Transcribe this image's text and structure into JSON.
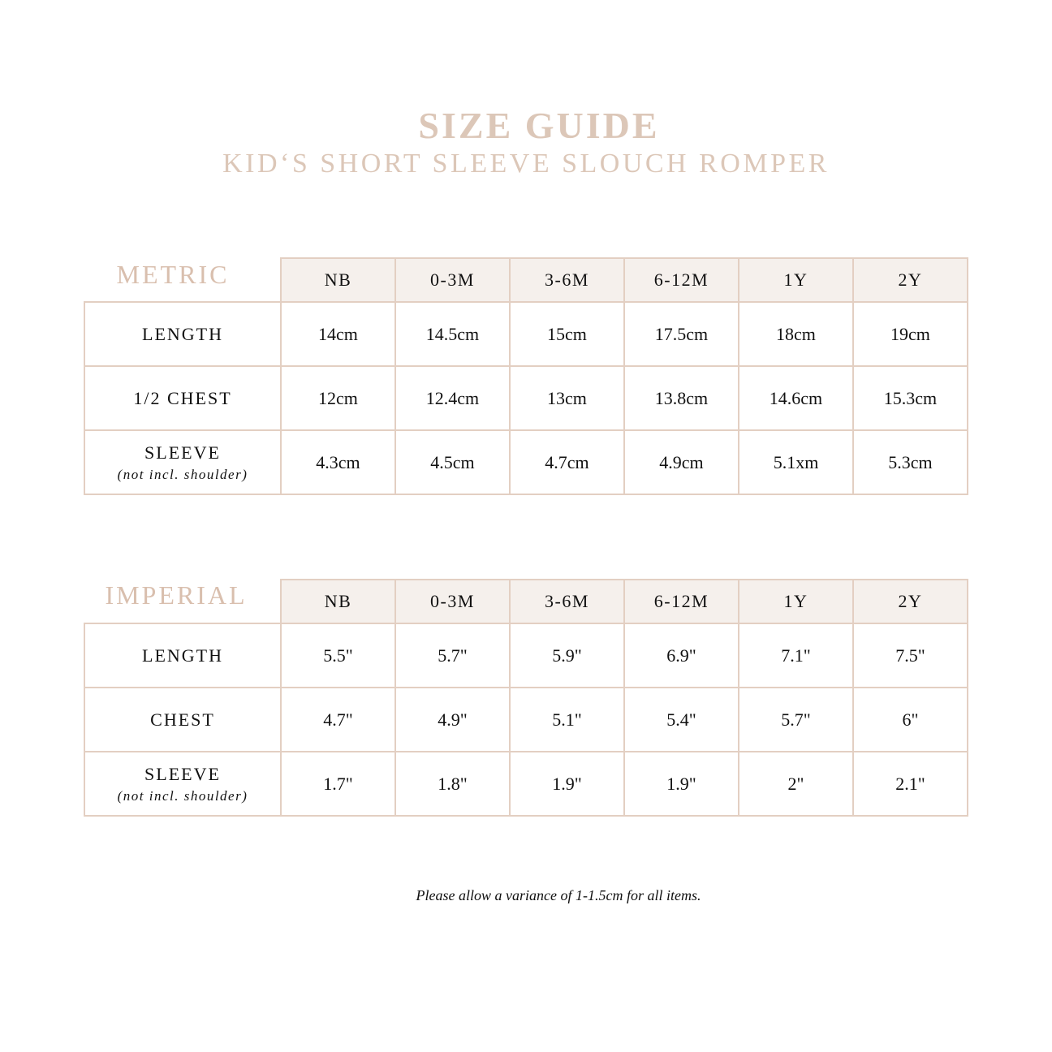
{
  "header": {
    "title": "SIZE GUIDE",
    "subtitle": "KID‘S SHORT SLEEVE SLOUCH ROMPER"
  },
  "colors": {
    "accent": "#dcc7b8",
    "border": "#e3cfc2",
    "header_bg": "#f5f0ec"
  },
  "metric": {
    "label": "METRIC",
    "sizes": [
      "NB",
      "0-3M",
      "3-6M",
      "6-12M",
      "1Y",
      "2Y"
    ],
    "rows": [
      {
        "label": "LENGTH",
        "note": "",
        "values": [
          "14cm",
          "14.5cm",
          "15cm",
          "17.5cm",
          "18cm",
          "19cm"
        ]
      },
      {
        "label": "1/2 CHEST",
        "note": "",
        "values": [
          "12cm",
          "12.4cm",
          "13cm",
          "13.8cm",
          "14.6cm",
          "15.3cm"
        ]
      },
      {
        "label": "SLEEVE",
        "note": "(not incl. shoulder)",
        "values": [
          "4.3cm",
          "4.5cm",
          "4.7cm",
          "4.9cm",
          "5.1xm",
          "5.3cm"
        ]
      }
    ]
  },
  "imperial": {
    "label": "IMPERIAL",
    "sizes": [
      "NB",
      "0-3M",
      "3-6M",
      "6-12M",
      "1Y",
      "2Y"
    ],
    "rows": [
      {
        "label": "LENGTH",
        "note": "",
        "values": [
          "5.5\"",
          "5.7\"",
          "5.9\"",
          "6.9\"",
          "7.1\"",
          "7.5\""
        ]
      },
      {
        "label": "CHEST",
        "note": "",
        "values": [
          "4.7\"",
          "4.9\"",
          "5.1\"",
          "5.4\"",
          "5.7\"",
          "6\""
        ]
      },
      {
        "label": "SLEEVE",
        "note": "(not incl. shoulder)",
        "values": [
          "1.7\"",
          "1.8\"",
          "1.9\"",
          "1.9\"",
          "2\"",
          "2.1\""
        ]
      }
    ]
  },
  "footer": {
    "note": "Please allow a variance of 1-1.5cm for all items."
  }
}
